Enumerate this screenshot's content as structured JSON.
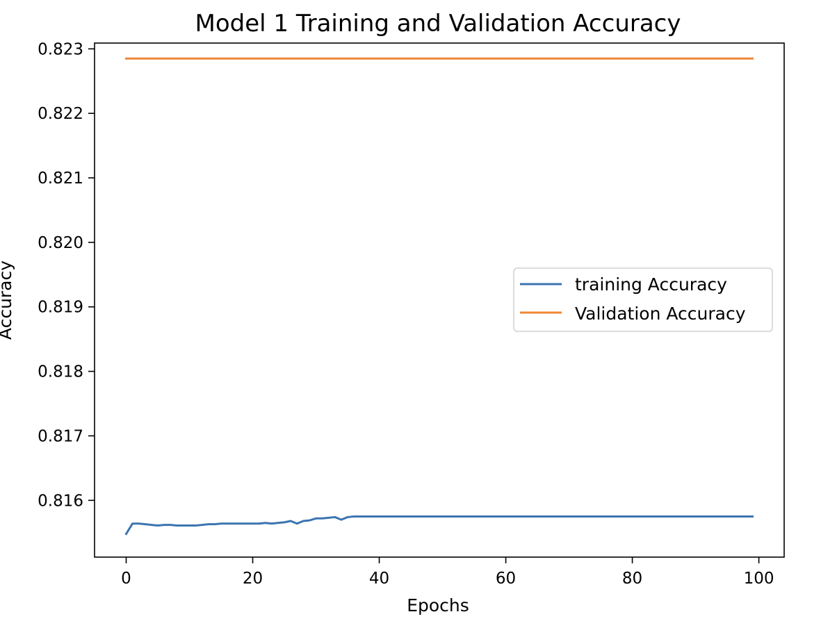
{
  "chart_data": {
    "type": "line",
    "title": "Model 1 Training and Validation Accuracy",
    "xlabel": "Epochs",
    "ylabel": "Accuracy",
    "xlim": [
      -5,
      104
    ],
    "ylim": [
      0.81512,
      0.82309
    ],
    "xticks": [
      0,
      20,
      40,
      60,
      80,
      100
    ],
    "xtick_labels": [
      "0",
      "20",
      "40",
      "60",
      "80",
      "100"
    ],
    "yticks": [
      0.816,
      0.817,
      0.818,
      0.819,
      0.82,
      0.821,
      0.822,
      0.823
    ],
    "ytick_labels": [
      "0.816",
      "0.817",
      "0.818",
      "0.819",
      "0.820",
      "0.821",
      "0.822",
      "0.823"
    ],
    "grid": false,
    "legend_position": "center right",
    "series": [
      {
        "name": "training Accuracy",
        "color": "#3b75af",
        "x": [
          0,
          1,
          2,
          3,
          4,
          5,
          6,
          7,
          8,
          9,
          10,
          11,
          12,
          13,
          14,
          15,
          16,
          17,
          18,
          19,
          20,
          21,
          22,
          23,
          24,
          25,
          26,
          27,
          28,
          29,
          30,
          31,
          32,
          33,
          34,
          35,
          36,
          37,
          38,
          39,
          40,
          41,
          42,
          43,
          44,
          45,
          46,
          47,
          48,
          49,
          50,
          51,
          52,
          53,
          54,
          55,
          56,
          57,
          58,
          59,
          60,
          61,
          62,
          63,
          64,
          65,
          66,
          67,
          68,
          69,
          70,
          71,
          72,
          73,
          74,
          75,
          76,
          77,
          78,
          79,
          80,
          81,
          82,
          83,
          84,
          85,
          86,
          87,
          88,
          89,
          90,
          91,
          92,
          93,
          94,
          95,
          96,
          97,
          98,
          99
        ],
        "y": [
          0.81548,
          0.81564,
          0.81564,
          0.81563,
          0.81562,
          0.81561,
          0.81562,
          0.81562,
          0.81561,
          0.81561,
          0.81561,
          0.81561,
          0.81562,
          0.81563,
          0.81563,
          0.81564,
          0.81564,
          0.81564,
          0.81564,
          0.81564,
          0.81564,
          0.81564,
          0.81565,
          0.81564,
          0.81565,
          0.81566,
          0.81568,
          0.81564,
          0.81568,
          0.81569,
          0.81572,
          0.81572,
          0.81573,
          0.81574,
          0.8157,
          0.81574,
          0.81575,
          0.81575,
          0.81575,
          0.81575,
          0.81575,
          0.81575,
          0.81575,
          0.81575,
          0.81575,
          0.81575,
          0.81575,
          0.81575,
          0.81575,
          0.81575,
          0.81575,
          0.81575,
          0.81575,
          0.81575,
          0.81575,
          0.81575,
          0.81575,
          0.81575,
          0.81575,
          0.81575,
          0.81575,
          0.81575,
          0.81575,
          0.81575,
          0.81575,
          0.81575,
          0.81575,
          0.81575,
          0.81575,
          0.81575,
          0.81575,
          0.81575,
          0.81575,
          0.81575,
          0.81575,
          0.81575,
          0.81575,
          0.81575,
          0.81575,
          0.81575,
          0.81575,
          0.81575,
          0.81575,
          0.81575,
          0.81575,
          0.81575,
          0.81575,
          0.81575,
          0.81575,
          0.81575,
          0.81575,
          0.81575,
          0.81575,
          0.81575,
          0.81575,
          0.81575,
          0.81575,
          0.81575,
          0.81575,
          0.81575
        ]
      },
      {
        "name": "Validation Accuracy",
        "color": "#ef8636",
        "x": [
          0,
          1,
          2,
          3,
          4,
          5,
          6,
          7,
          8,
          9,
          10,
          11,
          12,
          13,
          14,
          15,
          16,
          17,
          18,
          19,
          20,
          21,
          22,
          23,
          24,
          25,
          26,
          27,
          28,
          29,
          30,
          31,
          32,
          33,
          34,
          35,
          36,
          37,
          38,
          39,
          40,
          41,
          42,
          43,
          44,
          45,
          46,
          47,
          48,
          49,
          50,
          51,
          52,
          53,
          54,
          55,
          56,
          57,
          58,
          59,
          60,
          61,
          62,
          63,
          64,
          65,
          66,
          67,
          68,
          69,
          70,
          71,
          72,
          73,
          74,
          75,
          76,
          77,
          78,
          79,
          80,
          81,
          82,
          83,
          84,
          85,
          86,
          87,
          88,
          89,
          90,
          91,
          92,
          93,
          94,
          95,
          96,
          97,
          98,
          99
        ],
        "y": [
          0.82285,
          0.82285,
          0.82285,
          0.82285,
          0.82285,
          0.82285,
          0.82285,
          0.82285,
          0.82285,
          0.82285,
          0.82285,
          0.82285,
          0.82285,
          0.82285,
          0.82285,
          0.82285,
          0.82285,
          0.82285,
          0.82285,
          0.82285,
          0.82285,
          0.82285,
          0.82285,
          0.82285,
          0.82285,
          0.82285,
          0.82285,
          0.82285,
          0.82285,
          0.82285,
          0.82285,
          0.82285,
          0.82285,
          0.82285,
          0.82285,
          0.82285,
          0.82285,
          0.82285,
          0.82285,
          0.82285,
          0.82285,
          0.82285,
          0.82285,
          0.82285,
          0.82285,
          0.82285,
          0.82285,
          0.82285,
          0.82285,
          0.82285,
          0.82285,
          0.82285,
          0.82285,
          0.82285,
          0.82285,
          0.82285,
          0.82285,
          0.82285,
          0.82285,
          0.82285,
          0.82285,
          0.82285,
          0.82285,
          0.82285,
          0.82285,
          0.82285,
          0.82285,
          0.82285,
          0.82285,
          0.82285,
          0.82285,
          0.82285,
          0.82285,
          0.82285,
          0.82285,
          0.82285,
          0.82285,
          0.82285,
          0.82285,
          0.82285,
          0.82285,
          0.82285,
          0.82285,
          0.82285,
          0.82285,
          0.82285,
          0.82285,
          0.82285,
          0.82285,
          0.82285,
          0.82285,
          0.82285,
          0.82285,
          0.82285,
          0.82285,
          0.82285,
          0.82285,
          0.82285,
          0.82285,
          0.82285
        ]
      }
    ]
  }
}
